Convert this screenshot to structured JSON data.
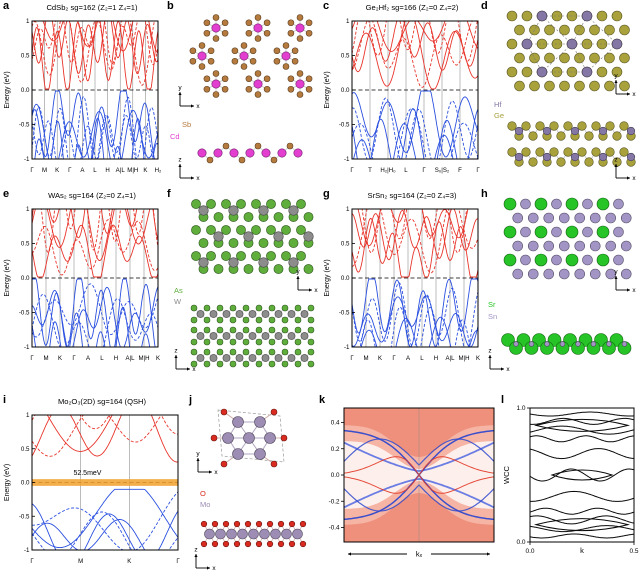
{
  "figure": {
    "background": "#ffffff"
  },
  "band_axis": {
    "ylabel": "Energy (eV)",
    "yticks": [
      {
        "v": 1,
        "label": "1"
      },
      {
        "v": 0.5,
        "label": "0.5"
      },
      {
        "v": 0,
        "label": "0.0"
      },
      {
        "v": -0.5,
        "label": "-0.5"
      },
      {
        "v": -1,
        "label": "-1"
      }
    ]
  },
  "colors": {
    "conduction": "#e8352b",
    "valence": "#2b50e0",
    "grid": "#7a7a7a",
    "zero_line": "#000000"
  },
  "panels": {
    "a": {
      "letter": "a",
      "title": "CdSb₂  sg=162  (Z₂=1 Z₄=1)",
      "kpoints": [
        "Γ",
        "M",
        "K",
        "Γ",
        "A",
        "L",
        "H",
        "A|L",
        "M|H",
        "K",
        "H₂"
      ]
    },
    "b": {
      "letter": "b",
      "legend": [
        {
          "label": "Cd",
          "color": "#e23fd0"
        },
        {
          "label": "Sb",
          "color": "#b57a3e"
        }
      ],
      "axes_top": {
        "v": "y",
        "h": "x"
      },
      "axes_side": {
        "v": "z",
        "h": "x"
      }
    },
    "c": {
      "letter": "c",
      "title": "Ge₂Hf₂  sg=166  (Z₂=0 Z₄=2)",
      "kpoints": [
        "Γ",
        "T",
        "H₂|H₀",
        "L",
        "Γ",
        "S₀|S₂",
        "F",
        "Γ"
      ]
    },
    "d": {
      "letter": "d",
      "legend": [
        {
          "label": "Hf",
          "color": "#8577a5"
        },
        {
          "label": "Ge",
          "color": "#a8a13c"
        }
      ],
      "axes_top": {
        "v": "y",
        "h": "x"
      },
      "axes_side": {
        "v": "z",
        "h": "x"
      }
    },
    "e": {
      "letter": "e",
      "title": "WAs₂  sg=164  (Z₂=0 Z₄=1)",
      "kpoints": [
        "Γ",
        "M",
        "K",
        "Γ",
        "A",
        "L",
        "H",
        "A|L",
        "M|H",
        "K"
      ]
    },
    "f": {
      "letter": "f",
      "legend": [
        {
          "label": "As",
          "color": "#5fae3c"
        },
        {
          "label": "W",
          "color": "#8c8c8c"
        }
      ],
      "axes_top": {
        "v": "y",
        "h": "x"
      },
      "axes_side": {
        "v": "z",
        "h": "x"
      }
    },
    "g": {
      "letter": "g",
      "title": "SrSn₂  sg=164  (Z₂=0 Z₄=3)",
      "kpoints": [
        "Γ",
        "M",
        "K",
        "Γ",
        "A",
        "L",
        "H",
        "A|L",
        "M|H",
        "K"
      ]
    },
    "h": {
      "letter": "h",
      "legend": [
        {
          "label": "Sr",
          "color": "#27c427"
        },
        {
          "label": "Sn",
          "color": "#a294c4"
        }
      ],
      "axes_top": {
        "v": "y",
        "h": "x"
      },
      "axes_side": {
        "v": "z",
        "h": "x"
      }
    },
    "i": {
      "letter": "i",
      "title": "Mo₂O₃(2D)  sg=164  (QSH)",
      "kpoints": [
        "Γ",
        "M",
        "K",
        "Γ"
      ],
      "gap": {
        "label": "52.5meV",
        "color": "#f2a12e"
      }
    },
    "j": {
      "letter": "j",
      "legend": [
        {
          "label": "O",
          "color": "#d92b20"
        },
        {
          "label": "Mo",
          "color": "#9d8db4"
        }
      ],
      "axes_top": {
        "v": "y",
        "h": "x"
      },
      "axes_side": {
        "v": "z",
        "h": "x"
      }
    },
    "k": {
      "letter": "k",
      "yticks": [
        "0.4",
        "0.2",
        "0.0",
        "-0.2",
        "-0.4"
      ],
      "xlabel": "kₓ"
    },
    "l": {
      "letter": "l",
      "ylabel": "WCC",
      "yticks": [
        "1.0",
        "0.0"
      ],
      "xticks": [
        "0.0",
        "0.5"
      ],
      "xlabel": "k"
    }
  }
}
